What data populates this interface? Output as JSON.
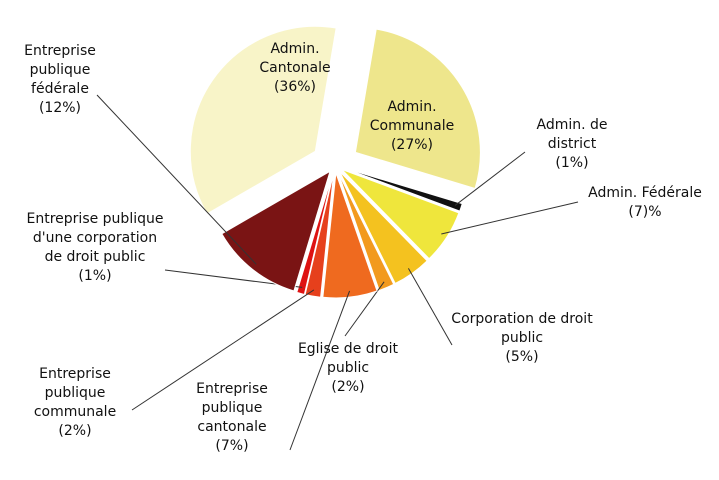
{
  "chart_data": {
    "type": "pie",
    "categories": [
      "Admin. Cantonale",
      "Admin. Communale",
      "Admin. de district",
      "Admin. Fédérale",
      "Corporation de droit public",
      "Eglise de droit public",
      "Entreprise publique cantonale",
      "Entreprise publique communale",
      "Entreprise publique d'une corporation de droit public",
      "Entreprise publique fédérale"
    ],
    "values": [
      36,
      27,
      1,
      7,
      5,
      2,
      7,
      2,
      1,
      12
    ],
    "value_labels": [
      "(36%)",
      "(27%)",
      "(1%)",
      "(7)%",
      "(5%)",
      "(2%)",
      "(7%)",
      "(2%)",
      "(1%)",
      "(12%)"
    ],
    "colors": [
      "#f8f4c8",
      "#eee68c",
      "#111111",
      "#efe63c",
      "#f4c21f",
      "#f29a1e",
      "#ef6a1f",
      "#e6401c",
      "#de1212",
      "#7a1414"
    ]
  }
}
